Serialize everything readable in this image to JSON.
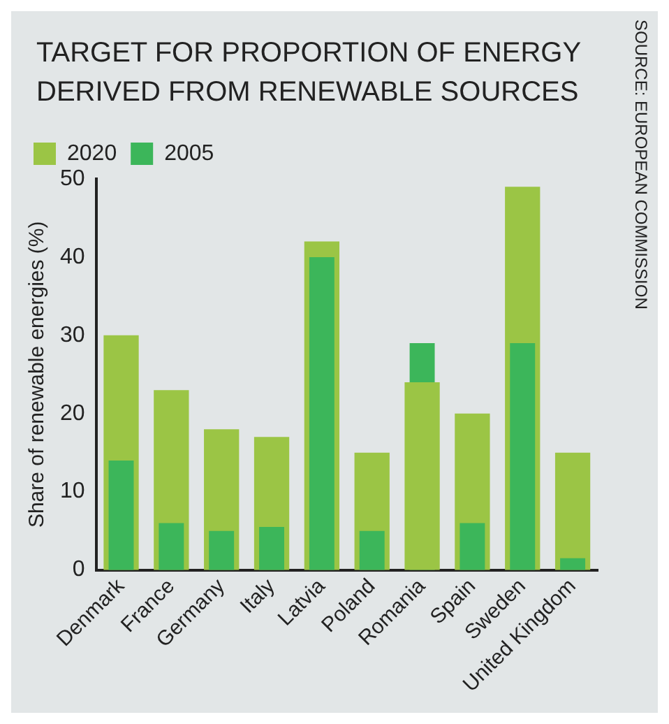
{
  "chart_data": {
    "type": "bar",
    "title": "TARGET FOR PROPORTION OF ENERGY DERIVED FROM RENEWABLE SOURCES",
    "ylabel": "Share of renewable energies (%)",
    "categories": [
      "Denmark",
      "France",
      "Germany",
      "Italy",
      "Latvia",
      "Poland",
      "Romania",
      "Spain",
      "Sweden",
      "United Kingdom"
    ],
    "series": [
      {
        "name": "2020",
        "color": "#9bc545",
        "values": [
          30,
          23,
          18,
          17,
          42,
          15,
          24,
          20,
          49,
          15
        ]
      },
      {
        "name": "2005",
        "color": "#3cb65a",
        "values": [
          14,
          6,
          5,
          5.5,
          40,
          5,
          29,
          6,
          29,
          1.5
        ]
      }
    ],
    "ylim": [
      0,
      50
    ],
    "yticks": [
      0,
      10,
      20,
      30,
      40,
      50
    ],
    "grid": false,
    "legend": "top left",
    "annotations": [
      "SOURCE: EUROPEAN COMMISSION"
    ]
  }
}
